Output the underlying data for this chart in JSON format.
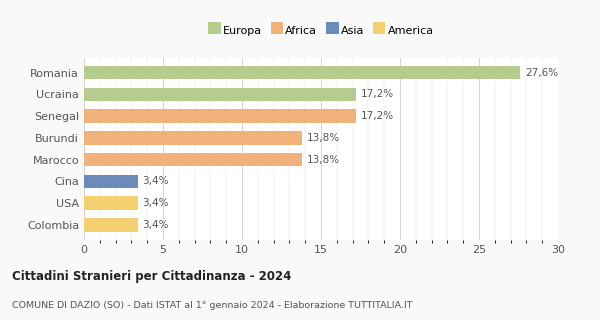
{
  "categories": [
    "Romania",
    "Ucraina",
    "Senegal",
    "Burundi",
    "Marocco",
    "Cina",
    "USA",
    "Colombia"
  ],
  "values": [
    27.6,
    17.2,
    17.2,
    13.8,
    13.8,
    3.4,
    3.4,
    3.4
  ],
  "labels": [
    "27,6%",
    "17,2%",
    "17,2%",
    "13,8%",
    "13,8%",
    "3,4%",
    "3,4%",
    "3,4%"
  ],
  "colors": [
    "#b5cc8e",
    "#b5cc8e",
    "#f0b27a",
    "#f0b27a",
    "#f0b27a",
    "#6b8cba",
    "#f5d070",
    "#f5d070"
  ],
  "legend_labels": [
    "Europa",
    "Africa",
    "Asia",
    "America"
  ],
  "legend_colors": [
    "#b5cc8e",
    "#f0b27a",
    "#6b8cba",
    "#f5d070"
  ],
  "title": "Cittadini Stranieri per Cittadinanza - 2024",
  "subtitle": "COMUNE DI DAZIO (SO) - Dati ISTAT al 1° gennaio 2024 - Elaborazione TUTTITALIA.IT",
  "xlim": [
    0,
    30
  ],
  "xticks": [
    0,
    5,
    10,
    15,
    20,
    25,
    30
  ],
  "bg_color": "#f9f9f9",
  "plot_bg_color": "#ffffff"
}
